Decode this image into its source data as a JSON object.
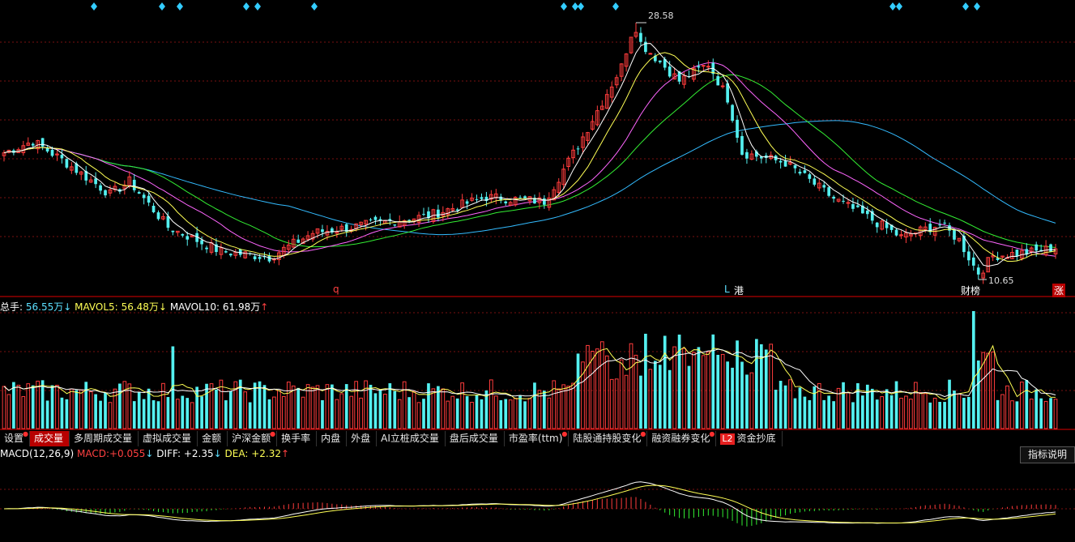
{
  "colors": {
    "background": "#000000",
    "up": "#ff3c3c",
    "down": "#54f0f0",
    "ma5": "#ffffff",
    "ma10": "#ffff55",
    "ma20": "#ff66ff",
    "ma30": "#33ee33",
    "ma60": "#33bbff",
    "grid": "#7a1010",
    "divider": "#b00000",
    "diamond": "#33ccff"
  },
  "price_chart": {
    "max_price": "28.58",
    "min_price": "10.65",
    "markers": {
      "q": "q",
      "L": "L",
      "gang": "港",
      "caibang": "财榜",
      "zhang": "涨"
    },
    "diamond_count": 14
  },
  "volume_panel": {
    "total_label": "总手:",
    "total_value": "56.55万",
    "total_arrow": "↓",
    "mavol5_label": "MAVOL5:",
    "mavol5_value": "56.48万",
    "mavol5_arrow": "↓",
    "mavol10_label": "MAVOL10:",
    "mavol10_value": "61.98万",
    "mavol10_arrow": "↑"
  },
  "tabs": [
    {
      "label": "设置",
      "dot": true,
      "active": false
    },
    {
      "label": "成交量",
      "dot": false,
      "active": true
    },
    {
      "label": "多周期成交量",
      "dot": false,
      "active": false
    },
    {
      "label": "虚拟成交量",
      "dot": false,
      "active": false
    },
    {
      "label": "金额",
      "dot": false,
      "active": false
    },
    {
      "label": "沪深金额",
      "dot": true,
      "active": false
    },
    {
      "label": "换手率",
      "dot": false,
      "active": false
    },
    {
      "label": "内盘",
      "dot": false,
      "active": false
    },
    {
      "label": "外盘",
      "dot": false,
      "active": false
    },
    {
      "label": "AI立桩成交量",
      "dot": false,
      "active": false
    },
    {
      "label": "盘后成交量",
      "dot": false,
      "active": false
    },
    {
      "label": "市盈率(ttm)",
      "dot": true,
      "active": false
    },
    {
      "label": "陆股通持股变化",
      "dot": true,
      "active": false
    },
    {
      "label": "融资融券变化",
      "dot": true,
      "active": false
    },
    {
      "label": "资金抄底",
      "dot": false,
      "active": false,
      "badge": "L2"
    }
  ],
  "macd_panel": {
    "name": "MACD(12,26,9)",
    "macd_label": "MACD:",
    "macd_value": "+0.055",
    "macd_arrow": "↓",
    "diff_label": "DIFF:",
    "diff_value": "+2.35",
    "diff_arrow": "↓",
    "dea_label": "DEA:",
    "dea_value": "+2.32",
    "dea_arrow": "↑",
    "help_button": "指标说明"
  },
  "chart_data": {
    "type": "candlestick",
    "price_range": [
      10.65,
      28.58
    ],
    "trend_keypoints": [
      {
        "i": 0,
        "p": 19.5
      },
      {
        "i": 6,
        "p": 20.3
      },
      {
        "i": 12,
        "p": 19.0
      },
      {
        "i": 22,
        "p": 16.6
      },
      {
        "i": 26,
        "p": 17.5
      },
      {
        "i": 34,
        "p": 14.3
      },
      {
        "i": 45,
        "p": 12.6
      },
      {
        "i": 55,
        "p": 12.2
      },
      {
        "i": 64,
        "p": 13.9
      },
      {
        "i": 88,
        "p": 15.1
      },
      {
        "i": 100,
        "p": 16.4
      },
      {
        "i": 112,
        "p": 16.1
      },
      {
        "i": 119,
        "p": 20.0
      },
      {
        "i": 128,
        "p": 25.5
      },
      {
        "i": 130,
        "p": 27.8
      },
      {
        "i": 134,
        "p": 26.5
      },
      {
        "i": 140,
        "p": 24.5
      },
      {
        "i": 146,
        "p": 25.7
      },
      {
        "i": 150,
        "p": 23.3
      },
      {
        "i": 153,
        "p": 19.5
      },
      {
        "i": 162,
        "p": 18.8
      },
      {
        "i": 172,
        "p": 16.3
      },
      {
        "i": 180,
        "p": 14.8
      },
      {
        "i": 186,
        "p": 13.6
      },
      {
        "i": 194,
        "p": 14.5
      },
      {
        "i": 198,
        "p": 13.4
      },
      {
        "i": 202,
        "p": 11.0
      },
      {
        "i": 205,
        "p": 12.3
      },
      {
        "i": 214,
        "p": 12.6
      },
      {
        "i": 218,
        "p": 12.9
      }
    ],
    "candle_count": 219
  }
}
